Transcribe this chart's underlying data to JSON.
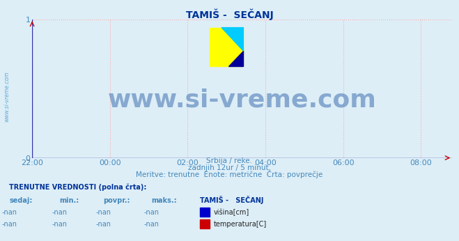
{
  "title": "TAMIŠ -  SEČANJ",
  "bg_color": "#ddeef7",
  "plot_bg_color": "#ddeef7",
  "grid_color": "#ffaaaa",
  "ylim": [
    0,
    1
  ],
  "yticks": [
    0,
    1
  ],
  "xtick_labels": [
    "22:00",
    "00:00",
    "02:00",
    "04:00",
    "06:00",
    "08:00"
  ],
  "xtick_positions": [
    0,
    2,
    4,
    6,
    8,
    10
  ],
  "xmin": 0,
  "xmax": 10.8,
  "watermark_text": "www.si-vreme.com",
  "watermark_color": "#3366aa",
  "watermark_alpha": 0.5,
  "watermark_fontsize": 26,
  "subtitle_line1": "Srbija / reke.",
  "subtitle_line2": "zadnjih 12ur / 5 minut.",
  "subtitle_line3": "Meritve: trenutne  Enote: metrične  Črta: povprečje",
  "subtitle_color": "#4488bb",
  "ylabel_text": "www.si-vreme.com",
  "ylabel_color": "#4499cc",
  "table_header": "TRENUTNE VREDNOSTI (polna črta):",
  "table_col1": "sedaj:",
  "table_col2": "min.:",
  "table_col3": "povpr.:",
  "table_col4": "maks.:",
  "table_col5": "TAMIŠ -   SEČANJ",
  "row1_vals": [
    "-nan",
    "-nan",
    "-nan",
    "-nan"
  ],
  "row1_label": "višina[cm]",
  "row1_color": "#0000cc",
  "row2_vals": [
    "-nan",
    "-nan",
    "-nan",
    "-nan"
  ],
  "row2_label": "temperatura[C]",
  "row2_color": "#cc0000",
  "title_color": "#003399",
  "title_fontsize": 10,
  "tick_color": "#4488bb",
  "tick_fontsize": 8,
  "xaxis_color": "#cc0000",
  "yaxis_color": "#cc0000",
  "hline_color": "#3333aa",
  "logo_yellow": "#ffff00",
  "logo_cyan": "#00ccff",
  "logo_navy": "#000099"
}
